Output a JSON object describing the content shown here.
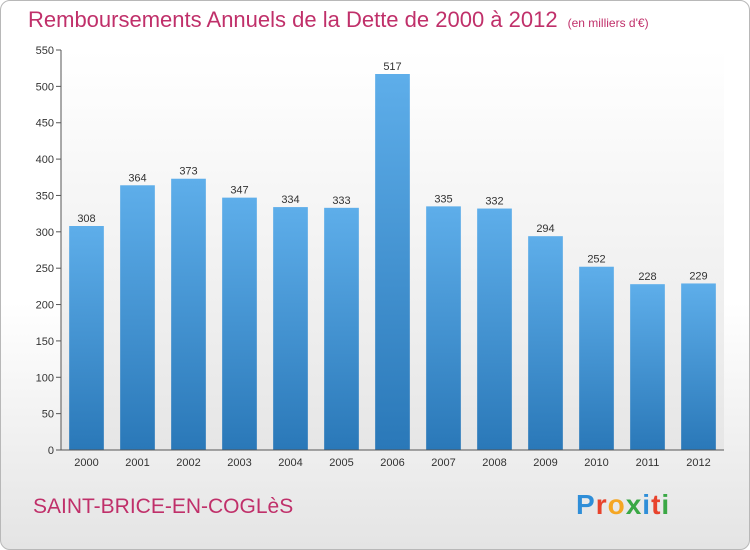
{
  "title": "Remboursements Annuels de la Dette de 2000 à 2012",
  "unit_note": "(en milliers d'€)",
  "commune": "SAINT-BRICE-EN-COGLèS",
  "logo": {
    "text": "Proxiti",
    "letters": [
      "P",
      "r",
      "o",
      "x",
      "i",
      "t",
      "i"
    ],
    "colors": [
      "#2f8ed8",
      "#e8432c",
      "#f5a623",
      "#3aa845",
      "#2f8ed8",
      "#e8432c",
      "#3aa845"
    ]
  },
  "chart_data": {
    "type": "bar",
    "title": "Remboursements Annuels de la Dette de 2000 à 2012",
    "xlabel": "",
    "ylabel": "",
    "categories": [
      "2000",
      "2001",
      "2002",
      "2003",
      "2004",
      "2005",
      "2006",
      "2007",
      "2008",
      "2009",
      "2010",
      "2011",
      "2012"
    ],
    "values": [
      308,
      364,
      373,
      347,
      334,
      333,
      517,
      335,
      332,
      294,
      252,
      228,
      229
    ],
    "data_labels": [
      "308",
      "364",
      "373",
      "347",
      "334",
      "333",
      "517",
      "335",
      "332",
      "294",
      "252",
      "228",
      "229"
    ],
    "ylim": [
      0,
      550
    ],
    "yticks": [
      0,
      50,
      100,
      150,
      200,
      250,
      300,
      350,
      400,
      450,
      500,
      550
    ],
    "grid": false,
    "bar_color": "#4f9fde"
  }
}
